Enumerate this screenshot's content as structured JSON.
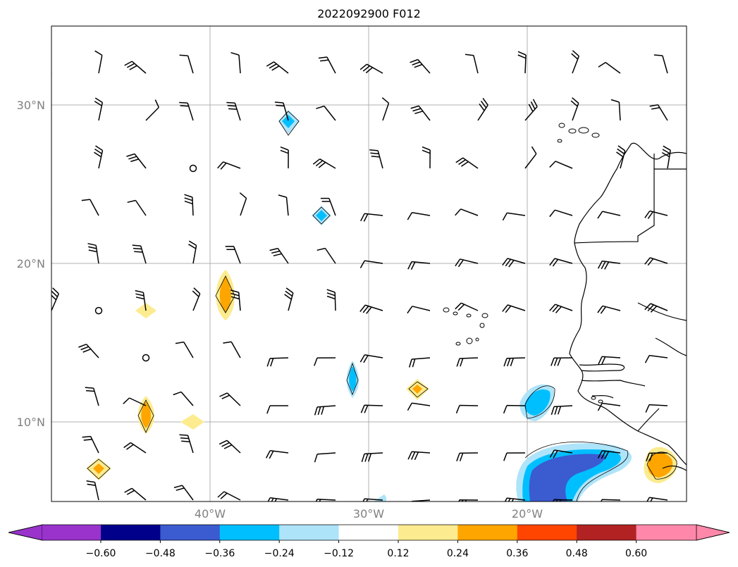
{
  "map": {
    "title": "2022092900 F012",
    "lat_labels": [
      "30°N",
      "20°N",
      "10°N"
    ],
    "lon_labels": [
      "40°W",
      "30°W",
      "20°W"
    ],
    "gridline_color": "#b0b0b0",
    "label_color": "#808080"
  },
  "colorbar": {
    "ticks": [
      "−0.60",
      "−0.48",
      "−0.36",
      "−0.24",
      "−0.12",
      "0.12",
      "0.24",
      "0.36",
      "0.48",
      "0.60"
    ],
    "under_color": "#9933cc",
    "over_color": "#ff88aa",
    "colors": [
      "#00008b",
      "#3b5bd0",
      "#00bfff",
      "#aee4fa",
      "#ffffff",
      "#fdeb8f",
      "#ffa500",
      "#ff4500",
      "#b22222"
    ]
  },
  "features": {
    "wind_barbs": "grid of wind barbs over the North Atlantic",
    "coastline": "West African coast and Cape Verde / Canary Islands"
  }
}
